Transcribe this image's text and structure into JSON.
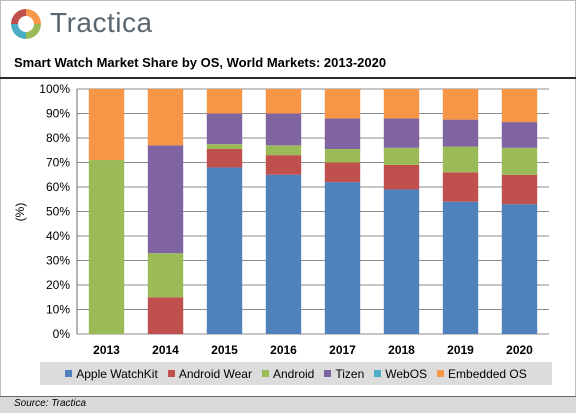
{
  "brand": {
    "name": "Tractica"
  },
  "legend_items": [
    {
      "label": "Apple WatchKit",
      "color": "#4f81bd"
    },
    {
      "label": "Android Wear",
      "color": "#c0504d"
    },
    {
      "label": "Android",
      "color": "#9bbb59"
    },
    {
      "label": "Tizen",
      "color": "#8064a2"
    },
    {
      "label": "WebOS",
      "color": "#4bacc6"
    },
    {
      "label": "Embedded OS",
      "color": "#f79646"
    }
  ],
  "source": "Source: Tractica",
  "chart_data": {
    "type": "bar",
    "stacked": true,
    "title": "Smart Watch Market Share by OS, World Markets: 2013-2020",
    "ylabel": "(%)",
    "xlabel": "",
    "ylim": [
      0,
      100
    ],
    "ytick_labels": [
      "0%",
      "10%",
      "20%",
      "30%",
      "40%",
      "50%",
      "60%",
      "70%",
      "80%",
      "90%",
      "100%"
    ],
    "grid": true,
    "legend_position": "bottom",
    "categories": [
      "2013",
      "2014",
      "2015",
      "2016",
      "2017",
      "2018",
      "2019",
      "2020"
    ],
    "series": [
      {
        "name": "Apple WatchKit",
        "color": "#4f81bd",
        "values": [
          0,
          0,
          68,
          65,
          62,
          59,
          54,
          53
        ]
      },
      {
        "name": "Android Wear",
        "color": "#c0504d",
        "values": [
          0,
          15,
          7.5,
          8,
          8,
          10,
          12,
          12
        ]
      },
      {
        "name": "Android",
        "color": "#9bbb59",
        "values": [
          71,
          18,
          2,
          4,
          5.5,
          7,
          10.5,
          11
        ]
      },
      {
        "name": "Tizen",
        "color": "#8064a2",
        "values": [
          0,
          44,
          12.5,
          13,
          12.5,
          12,
          11,
          10.5
        ]
      },
      {
        "name": "WebOS",
        "color": "#4bacc6",
        "values": [
          0,
          0,
          0,
          0,
          0,
          0,
          0,
          0
        ]
      },
      {
        "name": "Embedded OS",
        "color": "#f79646",
        "values": [
          29,
          23,
          10,
          10,
          12,
          12,
          12.5,
          13.5
        ]
      }
    ]
  }
}
